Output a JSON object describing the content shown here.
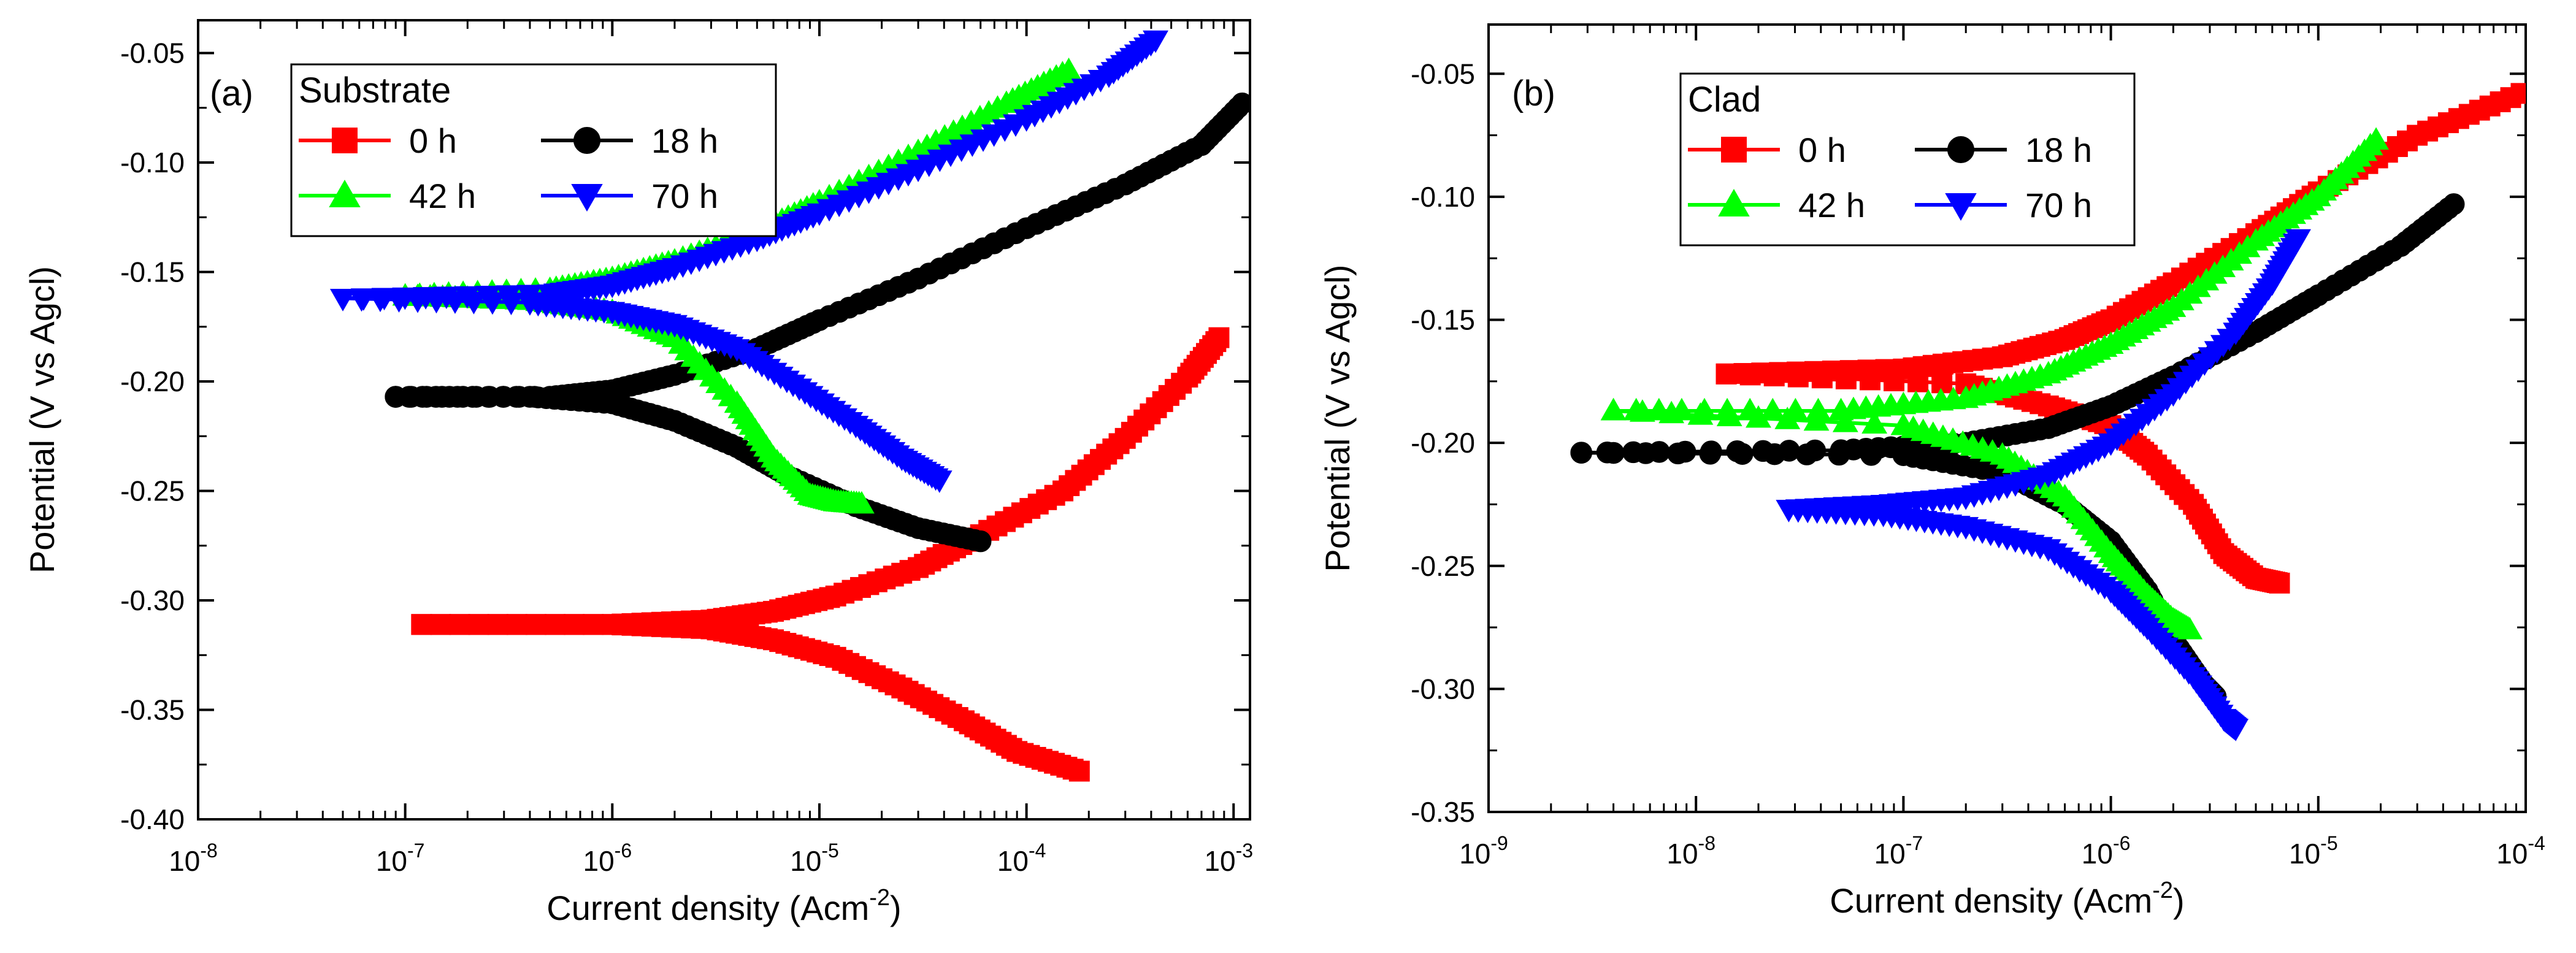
{
  "chart_data": [
    {
      "type": "line",
      "panel_label": "(a)",
      "legend_title": "Substrate",
      "xlabel": "Current density (Acm",
      "xlabel_sup": "-2",
      "xlabel_close": ")",
      "ylabel": "Potential (V vs Agcl)",
      "x_scale": "log",
      "xlim": [
        1e-08,
        0.0012
      ],
      "ylim": [
        -0.4,
        -0.035
      ],
      "x_ticks": [
        1e-08,
        1e-07,
        1e-06,
        1e-05,
        0.0001,
        0.001
      ],
      "y_ticks": [
        -0.4,
        -0.35,
        -0.3,
        -0.25,
        -0.2,
        -0.15,
        -0.1,
        -0.05
      ],
      "y_tick_labels": [
        "-0.40",
        "-0.35",
        "-0.30",
        "-0.25",
        "-0.20",
        "-0.15",
        "-0.10",
        "-0.05"
      ],
      "grid": false,
      "legend_position": "top-left",
      "series": [
        {
          "name": "0 h",
          "color": "#ff0000",
          "marker": "square",
          "cathodic": [
            [
              0.00018,
              -0.378
            ],
            [
              9e-05,
              -0.369
            ],
            [
              5e-05,
              -0.355
            ],
            [
              2.5e-05,
              -0.34
            ],
            [
              1.2e-05,
              -0.326
            ],
            [
              6e-06,
              -0.318
            ],
            [
              3e-06,
              -0.313
            ],
            [
              1e-06,
              -0.311
            ],
            [
              1.2e-07,
              -0.311
            ]
          ],
          "anodic": [
            [
              1.2e-07,
              -0.311
            ],
            [
              1e-06,
              -0.311
            ],
            [
              3e-06,
              -0.309
            ],
            [
              6e-06,
              -0.305
            ],
            [
              1.2e-05,
              -0.298
            ],
            [
              3e-05,
              -0.285
            ],
            [
              6e-05,
              -0.27
            ],
            [
              0.00015,
              -0.25
            ],
            [
              0.0003,
              -0.226
            ],
            [
              0.0006,
              -0.198
            ],
            [
              0.00085,
              -0.18
            ]
          ]
        },
        {
          "name": "18 h",
          "color": "#000000",
          "marker": "circle",
          "cathodic": [
            [
              6e-05,
              -0.273
            ],
            [
              3e-05,
              -0.267
            ],
            [
              1.5e-05,
              -0.257
            ],
            [
              7e-06,
              -0.243
            ],
            [
              4e-06,
              -0.23
            ],
            [
              2e-06,
              -0.218
            ],
            [
              1e-06,
              -0.21
            ],
            [
              4e-07,
              -0.207
            ],
            [
              9e-08,
              -0.207
            ]
          ],
          "anodic": [
            [
              9e-08,
              -0.207
            ],
            [
              5e-07,
              -0.207
            ],
            [
              1e-06,
              -0.204
            ],
            [
              2e-06,
              -0.197
            ],
            [
              5e-06,
              -0.185
            ],
            [
              1e-05,
              -0.172
            ],
            [
              3e-05,
              -0.153
            ],
            [
              0.0001,
              -0.13
            ],
            [
              0.0003,
              -0.11
            ],
            [
              0.0007,
              -0.092
            ],
            [
              0.0011,
              -0.073
            ]
          ]
        },
        {
          "name": "42 h",
          "color": "#00ff00",
          "marker": "triangle-up",
          "cathodic": [
            [
              1.6e-05,
              -0.256
            ],
            [
              1.2e-05,
              -0.255
            ],
            [
              9e-06,
              -0.252
            ],
            [
              6e-06,
              -0.235
            ],
            [
              4e-06,
              -0.21
            ],
            [
              2e-06,
              -0.18
            ],
            [
              1e-06,
              -0.168
            ],
            [
              4e-07,
              -0.163
            ],
            [
              1e-07,
              -0.161
            ]
          ],
          "anodic": [
            [
              1e-07,
              -0.161
            ],
            [
              5e-07,
              -0.158
            ],
            [
              1e-06,
              -0.153
            ],
            [
              2e-06,
              -0.145
            ],
            [
              5e-06,
              -0.132
            ],
            [
              1e-05,
              -0.118
            ],
            [
              3e-05,
              -0.095
            ],
            [
              8e-05,
              -0.073
            ],
            [
              0.00016,
              -0.058
            ]
          ]
        },
        {
          "name": "70 h",
          "color": "#0000ff",
          "marker": "triangle-down",
          "cathodic": [
            [
              3.8e-05,
              -0.245
            ],
            [
              2.5e-05,
              -0.235
            ],
            [
              1.5e-05,
              -0.22
            ],
            [
              8e-06,
              -0.203
            ],
            [
              4e-06,
              -0.185
            ],
            [
              2e-06,
              -0.174
            ],
            [
              1e-06,
              -0.168
            ],
            [
              4e-07,
              -0.164
            ],
            [
              5e-08,
              -0.162
            ]
          ],
          "anodic": [
            [
              5e-08,
              -0.162
            ],
            [
              5e-07,
              -0.16
            ],
            [
              1e-06,
              -0.156
            ],
            [
              2e-06,
              -0.148
            ],
            [
              5e-06,
              -0.135
            ],
            [
              1e-05,
              -0.123
            ],
            [
              3e-05,
              -0.103
            ],
            [
              0.0001,
              -0.08
            ],
            [
              0.00025,
              -0.06
            ],
            [
              0.00042,
              -0.044
            ]
          ]
        }
      ]
    },
    {
      "type": "line",
      "panel_label": "(b)",
      "legend_title": "Clad",
      "xlabel": "Current density (Acm",
      "xlabel_sup": "-2",
      "xlabel_close": ")",
      "ylabel": "Potential (V vs Agcl)",
      "x_scale": "log",
      "xlim": [
        1e-09,
        0.0001
      ],
      "ylim": [
        -0.35,
        -0.03
      ],
      "x_ticks": [
        1e-09,
        1e-08,
        1e-07,
        1e-06,
        1e-05,
        0.0001
      ],
      "y_ticks": [
        -0.35,
        -0.3,
        -0.25,
        -0.2,
        -0.15,
        -0.1,
        -0.05
      ],
      "y_tick_labels": [
        "-0.35",
        "-0.30",
        "-0.25",
        "-0.20",
        "-0.15",
        "-0.10",
        "-0.05"
      ],
      "grid": false,
      "legend_position": "top-left",
      "series": [
        {
          "name": "0 h",
          "color": "#ff0000",
          "marker": "square",
          "cathodic": [
            [
              6.5e-06,
              -0.257
            ],
            [
              5e-06,
              -0.255
            ],
            [
              3.5e-06,
              -0.245
            ],
            [
              2.5e-06,
              -0.225
            ],
            [
              1.5e-06,
              -0.205
            ],
            [
              1e-06,
              -0.193
            ],
            [
              5e-07,
              -0.185
            ],
            [
              2e-07,
              -0.176
            ],
            [
              1.4e-08,
              -0.172
            ]
          ],
          "anodic": [
            [
              1.4e-08,
              -0.172
            ],
            [
              1e-07,
              -0.17
            ],
            [
              3e-07,
              -0.165
            ],
            [
              6e-07,
              -0.158
            ],
            [
              1e-06,
              -0.15
            ],
            [
              2e-06,
              -0.135
            ],
            [
              5e-06,
              -0.115
            ],
            [
              1e-05,
              -0.098
            ],
            [
              3e-05,
              -0.075
            ],
            [
              9.5e-05,
              -0.058
            ]
          ]
        },
        {
          "name": "18 h",
          "color": "#000000",
          "marker": "circle",
          "cathodic": [
            [
              3.2e-06,
              -0.303
            ],
            [
              2.8e-06,
              -0.298
            ],
            [
              2e-06,
              -0.28
            ],
            [
              1.5e-06,
              -0.26
            ],
            [
              1e-06,
              -0.24
            ],
            [
              6e-07,
              -0.225
            ],
            [
              3e-07,
              -0.212
            ],
            [
              1e-07,
              -0.205
            ],
            [
              2.8e-09,
              -0.204
            ]
          ],
          "anodic": [
            [
              2.8e-09,
              -0.204
            ],
            [
              5e-08,
              -0.203
            ],
            [
              2e-07,
              -0.2
            ],
            [
              5e-07,
              -0.194
            ],
            [
              1e-06,
              -0.185
            ],
            [
              2e-06,
              -0.173
            ],
            [
              5e-06,
              -0.155
            ],
            [
              1e-05,
              -0.14
            ],
            [
              2.5e-05,
              -0.12
            ],
            [
              4.5e-05,
              -0.103
            ]
          ]
        },
        {
          "name": "42 h",
          "color": "#00ff00",
          "marker": "triangle-up",
          "cathodic": [
            [
              2.4e-06,
              -0.276
            ],
            [
              2e-06,
              -0.272
            ],
            [
              1.5e-06,
              -0.262
            ],
            [
              1e-06,
              -0.245
            ],
            [
              6e-07,
              -0.222
            ],
            [
              3e-07,
              -0.205
            ],
            [
              1e-07,
              -0.193
            ],
            [
              4e-09,
              -0.187
            ]
          ],
          "anodic": [
            [
              4e-09,
              -0.187
            ],
            [
              5e-08,
              -0.187
            ],
            [
              2e-07,
              -0.182
            ],
            [
              5e-07,
              -0.172
            ],
            [
              1e-06,
              -0.16
            ],
            [
              2e-06,
              -0.145
            ],
            [
              5e-06,
              -0.118
            ],
            [
              1e-05,
              -0.1
            ],
            [
              1.9e-05,
              -0.077
            ]
          ]
        },
        {
          "name": "70 h",
          "color": "#0000ff",
          "marker": "triangle-down",
          "cathodic": [
            [
              4e-06,
              -0.316
            ],
            [
              3.5e-06,
              -0.312
            ],
            [
              2.5e-06,
              -0.295
            ],
            [
              1.5e-06,
              -0.275
            ],
            [
              1e-06,
              -0.26
            ],
            [
              5e-07,
              -0.243
            ],
            [
              2e-07,
              -0.234
            ],
            [
              8e-08,
              -0.229
            ],
            [
              2.8e-08,
              -0.227
            ]
          ],
          "anodic": [
            [
              2.8e-08,
              -0.227
            ],
            [
              8e-08,
              -0.225
            ],
            [
              2e-07,
              -0.222
            ],
            [
              5e-07,
              -0.213
            ],
            [
              1e-06,
              -0.2
            ],
            [
              2e-06,
              -0.18
            ],
            [
              4e-06,
              -0.155
            ],
            [
              6e-06,
              -0.135
            ],
            [
              8e-06,
              -0.117
            ]
          ]
        }
      ]
    }
  ]
}
